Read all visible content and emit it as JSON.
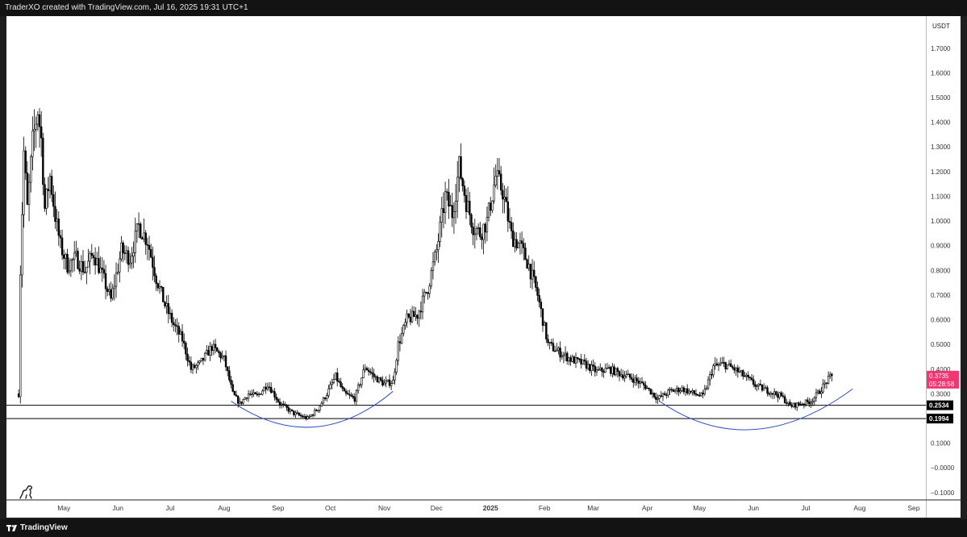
{
  "header": {
    "caption": "TraderXO created with TradingView.com, Jul 16, 2025 19:31 UTC+1"
  },
  "footer": {
    "brand": "TradingView"
  },
  "chart_data": {
    "type": "candlestick",
    "currency": "USDT",
    "y_axis": {
      "ticks": [
        "1.7000",
        "1.6000",
        "1.5000",
        "1.4000",
        "1.3000",
        "1.2000",
        "1.1000",
        "1.0000",
        "0.9000",
        "0.8000",
        "0.7000",
        "0.6000",
        "0.5000",
        "0.4000",
        "0.3000",
        "0.2000",
        "0.1000",
        "−0.0000",
        "−0.1000"
      ],
      "range": [
        -0.13,
        1.83
      ]
    },
    "x_axis": {
      "labels": [
        "May",
        "Jun",
        "Jul",
        "Aug",
        "Sep",
        "Oct",
        "Nov",
        "Dec",
        "2025",
        "Feb",
        "Mar",
        "Apr",
        "May",
        "Jun",
        "Jul",
        "Aug",
        "Sep"
      ],
      "range": [
        "2024-03-29",
        "2025-09-08"
      ]
    },
    "price_path": [
      [
        "2024-04-05",
        0.3
      ],
      [
        "2024-04-06",
        0.8
      ],
      [
        "2024-04-08",
        1.28
      ],
      [
        "2024-04-10",
        1.05
      ],
      [
        "2024-04-13",
        1.32
      ],
      [
        "2024-04-16",
        1.45
      ],
      [
        "2024-04-18",
        1.33
      ],
      [
        "2024-04-20",
        1.05
      ],
      [
        "2024-04-23",
        1.18
      ],
      [
        "2024-04-26",
        1.02
      ],
      [
        "2024-04-29",
        0.9
      ],
      [
        "2024-05-03",
        0.82
      ],
      [
        "2024-05-08",
        0.85
      ],
      [
        "2024-05-13",
        0.8
      ],
      [
        "2024-05-18",
        0.87
      ],
      [
        "2024-05-23",
        0.78
      ],
      [
        "2024-05-28",
        0.68
      ],
      [
        "2024-06-03",
        0.88
      ],
      [
        "2024-06-08",
        0.85
      ],
      [
        "2024-06-13",
        0.98
      ],
      [
        "2024-06-18",
        0.92
      ],
      [
        "2024-06-23",
        0.77
      ],
      [
        "2024-06-28",
        0.66
      ],
      [
        "2024-07-03",
        0.58
      ],
      [
        "2024-07-08",
        0.52
      ],
      [
        "2024-07-13",
        0.4
      ],
      [
        "2024-07-18",
        0.42
      ],
      [
        "2024-07-25",
        0.49
      ],
      [
        "2024-08-01",
        0.44
      ],
      [
        "2024-08-06",
        0.3
      ],
      [
        "2024-08-10",
        0.26
      ],
      [
        "2024-08-15",
        0.3
      ],
      [
        "2024-08-20",
        0.29
      ],
      [
        "2024-08-26",
        0.34
      ],
      [
        "2024-09-02",
        0.26
      ],
      [
        "2024-09-10",
        0.22
      ],
      [
        "2024-09-18",
        0.2
      ],
      [
        "2024-09-24",
        0.24
      ],
      [
        "2024-09-29",
        0.3
      ],
      [
        "2024-10-04",
        0.37
      ],
      [
        "2024-10-09",
        0.3
      ],
      [
        "2024-10-15",
        0.28
      ],
      [
        "2024-10-21",
        0.41
      ],
      [
        "2024-10-26",
        0.37
      ],
      [
        "2024-11-01",
        0.34
      ],
      [
        "2024-11-06",
        0.35
      ],
      [
        "2024-11-09",
        0.5
      ],
      [
        "2024-11-14",
        0.6
      ],
      [
        "2024-11-20",
        0.62
      ],
      [
        "2024-11-26",
        0.73
      ],
      [
        "2024-12-01",
        0.88
      ],
      [
        "2024-12-06",
        1.1
      ],
      [
        "2024-12-10",
        1.03
      ],
      [
        "2024-12-14",
        1.22
      ],
      [
        "2024-12-18",
        1.08
      ],
      [
        "2024-12-22",
        0.98
      ],
      [
        "2024-12-26",
        0.95
      ],
      [
        "2024-12-30",
        1.0
      ],
      [
        "2025-01-04",
        1.18
      ],
      [
        "2025-01-08",
        1.12
      ],
      [
        "2025-01-13",
        0.94
      ],
      [
        "2025-01-18",
        0.9
      ],
      [
        "2025-01-23",
        0.82
      ],
      [
        "2025-01-28",
        0.7
      ],
      [
        "2025-02-03",
        0.5
      ],
      [
        "2025-02-09",
        0.47
      ],
      [
        "2025-02-16",
        0.44
      ],
      [
        "2025-02-24",
        0.42
      ],
      [
        "2025-03-03",
        0.39
      ],
      [
        "2025-03-10",
        0.4
      ],
      [
        "2025-03-17",
        0.38
      ],
      [
        "2025-03-24",
        0.36
      ],
      [
        "2025-03-31",
        0.33
      ],
      [
        "2025-04-07",
        0.28
      ],
      [
        "2025-04-14",
        0.31
      ],
      [
        "2025-04-21",
        0.32
      ],
      [
        "2025-04-28",
        0.3
      ],
      [
        "2025-05-03",
        0.29
      ],
      [
        "2025-05-09",
        0.41
      ],
      [
        "2025-05-15",
        0.42
      ],
      [
        "2025-05-21",
        0.4
      ],
      [
        "2025-05-27",
        0.37
      ],
      [
        "2025-06-03",
        0.33
      ],
      [
        "2025-06-10",
        0.31
      ],
      [
        "2025-06-17",
        0.29
      ],
      [
        "2025-06-22",
        0.25
      ],
      [
        "2025-06-28",
        0.26
      ],
      [
        "2025-07-04",
        0.27
      ],
      [
        "2025-07-09",
        0.31
      ],
      [
        "2025-07-13",
        0.35
      ],
      [
        "2025-07-16",
        0.3735
      ]
    ],
    "horizontal_lines": [
      {
        "value": 0.2534,
        "label": "0.2534"
      },
      {
        "value": 0.1994,
        "label": "0.1994"
      }
    ],
    "arcs": [
      {
        "start": [
          "2024-08-05",
          0.27
        ],
        "bottom": [
          "2024-09-21",
          0.165
        ],
        "end": [
          "2024-11-06",
          0.31
        ]
      },
      {
        "start": [
          "2025-04-08",
          0.27
        ],
        "bottom": [
          "2025-06-01",
          0.155
        ],
        "end": [
          "2025-07-28",
          0.32
        ]
      }
    ],
    "last_price": {
      "value": 0.3735,
      "label": "0.3735",
      "countdown": "05:28:58",
      "color": "#f23672"
    },
    "colors": {
      "candle": "#000000",
      "arc": "#3050c8",
      "line": "#000000",
      "label_bg": "#000000"
    }
  }
}
